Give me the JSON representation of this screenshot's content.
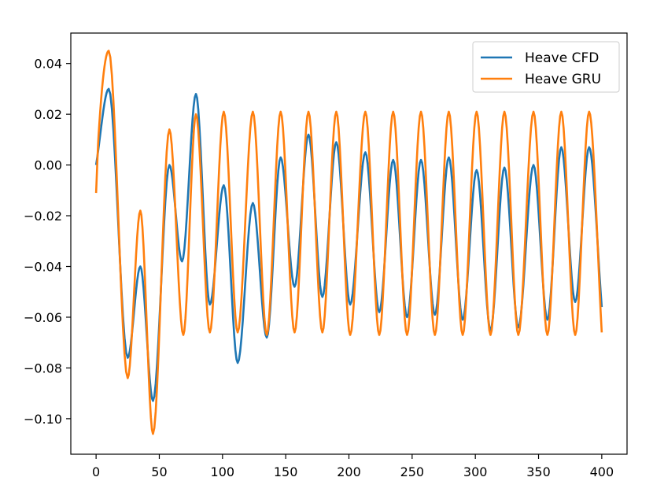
{
  "chart_data": {
    "type": "line",
    "title": "",
    "xlabel": "",
    "ylabel": "",
    "xlim": [
      -20,
      420
    ],
    "ylim": [
      -0.114,
      0.052
    ],
    "xticks": [
      0,
      50,
      100,
      150,
      200,
      250,
      300,
      350,
      400
    ],
    "xtick_labels": [
      "0",
      "50",
      "100",
      "150",
      "200",
      "250",
      "300",
      "350",
      "400"
    ],
    "yticks": [
      0.04,
      0.02,
      0.0,
      -0.02,
      -0.04,
      -0.06,
      -0.08,
      -0.1
    ],
    "ytick_labels": [
      "0.04",
      "0.02",
      "0.00",
      "−0.02",
      "−0.04",
      "−0.06",
      "−0.08",
      "−0.10"
    ],
    "grid": false,
    "legend": "upper right",
    "series": [
      {
        "name": "Heave CFD",
        "color": "#1f77b4",
        "x": [
          0,
          10,
          25,
          35,
          45,
          58,
          68,
          79,
          90,
          101,
          112,
          124,
          135,
          146,
          157,
          168,
          179,
          190,
          201,
          213,
          224,
          235,
          246,
          257,
          268,
          279,
          290,
          301,
          312,
          323,
          334,
          346,
          357,
          368,
          379,
          390,
          400
        ],
        "y": [
          0.0,
          0.03,
          -0.076,
          -0.04,
          -0.093,
          0.0,
          -0.038,
          0.028,
          -0.055,
          -0.008,
          -0.078,
          -0.015,
          -0.068,
          0.003,
          -0.048,
          0.012,
          -0.052,
          0.009,
          -0.055,
          0.005,
          -0.058,
          0.002,
          -0.06,
          0.002,
          -0.059,
          0.003,
          -0.061,
          -0.002,
          -0.065,
          -0.001,
          -0.064,
          0.0,
          -0.061,
          0.007,
          -0.054,
          0.007,
          -0.056
        ]
      },
      {
        "name": "Heave GRU",
        "color": "#ff7f0e",
        "x": [
          0,
          2,
          10,
          25,
          35,
          45,
          58,
          69,
          79,
          90,
          101,
          112,
          124,
          135,
          146,
          157,
          168,
          179,
          190,
          201,
          213,
          224,
          235,
          246,
          257,
          268,
          279,
          290,
          301,
          312,
          323,
          334,
          346,
          357,
          368,
          379,
          390,
          400
        ],
        "y": [
          -0.011,
          0.012,
          0.045,
          -0.084,
          -0.018,
          -0.106,
          0.014,
          -0.067,
          0.02,
          -0.066,
          0.021,
          -0.066,
          0.021,
          -0.067,
          0.021,
          -0.066,
          0.021,
          -0.066,
          0.021,
          -0.067,
          0.021,
          -0.067,
          0.021,
          -0.067,
          0.021,
          -0.067,
          0.021,
          -0.067,
          0.021,
          -0.067,
          0.021,
          -0.067,
          0.021,
          -0.067,
          0.021,
          -0.067,
          0.021,
          -0.066
        ]
      }
    ]
  }
}
